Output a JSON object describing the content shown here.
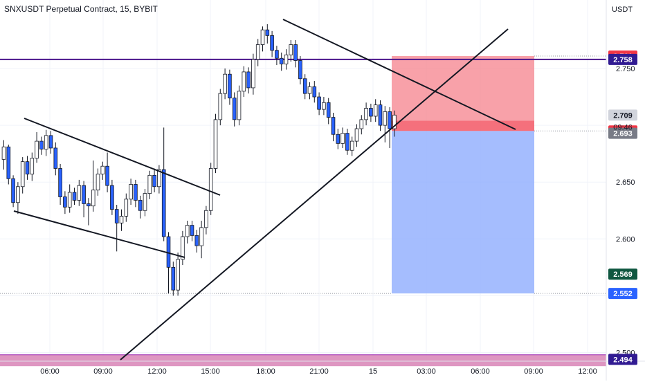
{
  "header": {
    "title": "SNXUSDT Perpetual Contract, 15, BYBIT",
    "currency": "USDT"
  },
  "chart_data": {
    "type": "candlestick",
    "ylim": [
      2.482,
      2.786
    ],
    "y_ticks": [
      "2.750",
      "2.650",
      "2.600",
      "2.500"
    ],
    "x_ticks": [
      "06:00",
      "09:00",
      "12:00",
      "15:00",
      "18:00",
      "21:00",
      "15",
      "03:00",
      "06:00",
      "09:00",
      "12:00"
    ],
    "countdown": "09:46",
    "colors": {
      "up": "#ffffff",
      "down": "#2962ff",
      "wick": "#131722",
      "stop_zone": "#f6828c",
      "target_zone": "#8fadfe",
      "horizontal_line": "#4a148c",
      "support_band": "#d884b6"
    },
    "price_labels": [
      {
        "value": 2.761,
        "text": "2.761",
        "bg": "#f23645",
        "fg": "#ffffff"
      },
      {
        "value": 2.758,
        "text": "2.758",
        "bg": "#311b92",
        "fg": "#ffffff"
      },
      {
        "value": 2.709,
        "text": "2.709",
        "bg": "#d1d4dc",
        "fg": "#131722"
      },
      {
        "value": 2.695,
        "text": "2.695",
        "bg": "#f23645",
        "fg": "#ffffff"
      },
      {
        "value": 2.693,
        "text": "2.693",
        "bg": "#787b86",
        "fg": "#ffffff"
      },
      {
        "value": 2.569,
        "text": "2.569",
        "bg": "#0f5740",
        "fg": "#ffffff"
      },
      {
        "value": 2.552,
        "text": "2.552",
        "bg": "#2962ff",
        "fg": "#ffffff"
      },
      {
        "value": 2.494,
        "text": "2.494",
        "bg": "#311b92",
        "fg": "#ffffff"
      }
    ],
    "horizontal_line": 2.758,
    "support_band": [
      2.488,
      2.498
    ],
    "position": {
      "entry": 2.695,
      "stop": 2.761,
      "target": 2.552,
      "stop_band_low": 2.704
    },
    "candles": [
      [
        2.67,
        2.681,
        2.661,
        2.687
      ],
      [
        2.681,
        2.653,
        2.648,
        2.683
      ],
      [
        2.653,
        2.632,
        2.628,
        2.656
      ],
      [
        2.632,
        2.646,
        2.622,
        2.65
      ],
      [
        2.646,
        2.668,
        2.64,
        2.672
      ],
      [
        2.668,
        2.657,
        2.652,
        2.673
      ],
      [
        2.657,
        2.671,
        2.651,
        2.676
      ],
      [
        2.671,
        2.686,
        2.667,
        2.694
      ],
      [
        2.686,
        2.679,
        2.674,
        2.69
      ],
      [
        2.679,
        2.691,
        2.673,
        2.696
      ],
      [
        2.691,
        2.68,
        2.675,
        2.695
      ],
      [
        2.68,
        2.662,
        2.656,
        2.685
      ],
      [
        2.662,
        2.637,
        2.63,
        2.666
      ],
      [
        2.637,
        2.628,
        2.622,
        2.642
      ],
      [
        2.628,
        2.641,
        2.623,
        2.648
      ],
      [
        2.641,
        2.634,
        2.63,
        2.645
      ],
      [
        2.634,
        2.647,
        2.629,
        2.652
      ],
      [
        2.647,
        2.631,
        2.619,
        2.651
      ],
      [
        2.631,
        2.629,
        2.612,
        2.636
      ],
      [
        2.629,
        2.643,
        2.624,
        2.669
      ],
      [
        2.643,
        2.657,
        2.638,
        2.662
      ],
      [
        2.657,
        2.664,
        2.652,
        2.668
      ],
      [
        2.664,
        2.647,
        2.641,
        2.676
      ],
      [
        2.647,
        2.626,
        2.621,
        2.652
      ],
      [
        2.626,
        2.614,
        2.589,
        2.63
      ],
      [
        2.614,
        2.62,
        2.607,
        2.626
      ],
      [
        2.62,
        2.635,
        2.615,
        2.64
      ],
      [
        2.635,
        2.648,
        2.63,
        2.653
      ],
      [
        2.648,
        2.634,
        2.628,
        2.652
      ],
      [
        2.634,
        2.625,
        2.618,
        2.638
      ],
      [
        2.625,
        2.64,
        2.62,
        2.644
      ],
      [
        2.64,
        2.656,
        2.635,
        2.66
      ],
      [
        2.656,
        2.646,
        2.641,
        2.662
      ],
      [
        2.646,
        2.661,
        2.64,
        2.665
      ],
      [
        2.661,
        2.602,
        2.598,
        2.698
      ],
      [
        2.602,
        2.575,
        2.552,
        2.606
      ],
      [
        2.575,
        2.555,
        2.55,
        2.58
      ],
      [
        2.555,
        2.582,
        2.55,
        2.588
      ],
      [
        2.582,
        2.602,
        2.577,
        2.607
      ],
      [
        2.602,
        2.612,
        2.596,
        2.616
      ],
      [
        2.612,
        2.603,
        2.598,
        2.616
      ],
      [
        2.603,
        2.594,
        2.588,
        2.608
      ],
      [
        2.594,
        2.61,
        2.583,
        2.616
      ],
      [
        2.61,
        2.625,
        2.604,
        2.629
      ],
      [
        2.625,
        2.662,
        2.621,
        2.667
      ],
      [
        2.662,
        2.705,
        2.658,
        2.71
      ],
      [
        2.705,
        2.728,
        2.7,
        2.732
      ],
      [
        2.728,
        2.745,
        2.723,
        2.75
      ],
      [
        2.745,
        2.724,
        2.718,
        2.749
      ],
      [
        2.724,
        2.705,
        2.699,
        2.729
      ],
      [
        2.705,
        2.73,
        2.7,
        2.735
      ],
      [
        2.73,
        2.747,
        2.725,
        2.752
      ],
      [
        2.747,
        2.733,
        2.728,
        2.751
      ],
      [
        2.733,
        2.758,
        2.727,
        2.763
      ],
      [
        2.758,
        2.771,
        2.752,
        2.776
      ],
      [
        2.771,
        2.784,
        2.765,
        2.787
      ],
      [
        2.784,
        2.779,
        2.772,
        2.789
      ],
      [
        2.779,
        2.766,
        2.76,
        2.783
      ],
      [
        2.766,
        2.759,
        2.753,
        2.77
      ],
      [
        2.759,
        2.754,
        2.748,
        2.764
      ],
      [
        2.754,
        2.762,
        2.749,
        2.767
      ],
      [
        2.762,
        2.771,
        2.756,
        2.775
      ],
      [
        2.771,
        2.757,
        2.751,
        2.775
      ],
      [
        2.757,
        2.741,
        2.736,
        2.761
      ],
      [
        2.741,
        2.728,
        2.723,
        2.745
      ],
      [
        2.728,
        2.734,
        2.723,
        2.738
      ],
      [
        2.734,
        2.725,
        2.72,
        2.739
      ],
      [
        2.725,
        2.714,
        2.709,
        2.729
      ],
      [
        2.714,
        2.72,
        2.709,
        2.725
      ],
      [
        2.72,
        2.707,
        2.701,
        2.724
      ],
      [
        2.707,
        2.692,
        2.686,
        2.711
      ],
      [
        2.692,
        2.684,
        2.679,
        2.697
      ],
      [
        2.684,
        2.693,
        2.68,
        2.698
      ],
      [
        2.693,
        2.678,
        2.674,
        2.697
      ],
      [
        2.678,
        2.686,
        2.673,
        2.69
      ],
      [
        2.686,
        2.697,
        2.681,
        2.701
      ],
      [
        2.697,
        2.705,
        2.692,
        2.709
      ],
      [
        2.705,
        2.715,
        2.7,
        2.72
      ],
      [
        2.715,
        2.708,
        2.703,
        2.719
      ],
      [
        2.708,
        2.718,
        2.703,
        2.723
      ],
      [
        2.718,
        2.7,
        2.695,
        2.722
      ],
      [
        2.7,
        2.712,
        2.685,
        2.717
      ],
      [
        2.712,
        2.697,
        2.68,
        2.716
      ],
      [
        2.697,
        2.709,
        2.69,
        2.713
      ]
    ]
  }
}
